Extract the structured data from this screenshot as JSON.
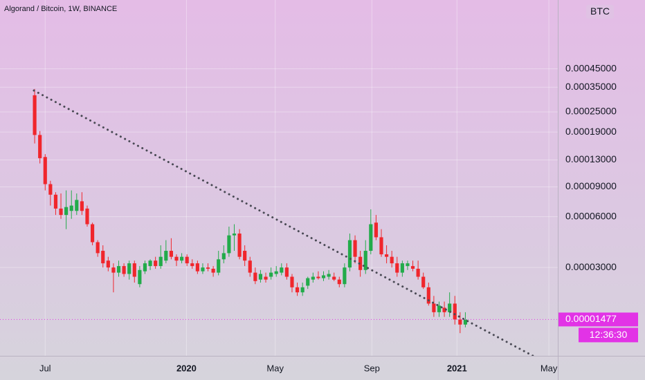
{
  "chart_data": {
    "type": "candlestick",
    "title": "Algorand / Bitcoin, 1W, BINANCE",
    "currency": "BTC",
    "log_scale": true,
    "grid": true,
    "up_color": "#22ab4a",
    "down_color": "#f0262c",
    "last_price": 1.477e-05,
    "last_price_color": "#e233e6",
    "countdown": "12:36:30",
    "xlim": [
      -6.6,
      99.6
    ],
    "xticks": [
      {
        "value": 2,
        "label": "Jul"
      },
      {
        "value": 28.9,
        "label": "2020"
      },
      {
        "value": 45.8,
        "label": "May"
      },
      {
        "value": 64.2,
        "label": "Sep"
      },
      {
        "value": 80.4,
        "label": "2021"
      },
      {
        "value": 97.9,
        "label": "May"
      }
    ],
    "ylim": [
      9e-06,
      0.00115
    ],
    "yticks": [
      {
        "value": 3e-05,
        "label": "0.00003000"
      },
      {
        "value": 6e-05,
        "label": "0.00006000"
      },
      {
        "value": 9e-05,
        "label": "0.00009000"
      },
      {
        "value": 0.00013,
        "label": "0.00013000"
      },
      {
        "value": 0.00019,
        "label": "0.00019000"
      },
      {
        "value": 0.00025,
        "label": "0.00025000"
      },
      {
        "value": 0.00035,
        "label": "0.00035000"
      },
      {
        "value": 0.00045,
        "label": "0.00045000"
      }
    ],
    "open": [
      0.0003139,
      0.00018265,
      0.00013525,
      9.346e-05,
      8.093e-05,
      6.698e-05,
      6.14e-05,
      6.489e-05,
      6.489e-05,
      7.396e-05,
      6.698e-05,
      5.412e-05,
      4.236e-05,
      3.766e-05,
      3.295e-05,
      3e-05,
      2.797e-05,
      3.059e-05,
      2.747e-05,
      3.176e-05,
      2.392e-05,
      2.848e-05,
      3.059e-05,
      3.295e-05,
      3.059e-05,
      3.295e-05,
      3.766e-05,
      3.471e-05,
      3.295e-05,
      3.471e-05,
      3.176e-05,
      3.176e-05,
      2.848e-05,
      3e-05,
      2.949e-05,
      2.797e-05,
      3.354e-05,
      3.648e-05,
      4.648e-05,
      4.765e-05,
      3.766e-05,
      3.295e-05,
      2.797e-05,
      2.544e-05,
      2.645e-05,
      2.645e-05,
      2.747e-05,
      2.797e-05,
      3e-05,
      2.645e-05,
      2.29e-05,
      2.138e-05,
      2.341e-05,
      2.544e-05,
      2.645e-05,
      2.594e-05,
      2.645e-05,
      2.645e-05,
      2.544e-05,
      2.392e-05,
      3e-05,
      4.354e-05,
      3.471e-05,
      2.899e-05,
      3.766e-05,
      5.53e-05,
      4.53e-05,
      3.589e-05,
      3.471e-05,
      3.176e-05,
      2.797e-05,
      3.059e-05,
      3.059e-05,
      2.949e-05,
      2.645e-05,
      2.29e-05,
      1.834e-05,
      1.631e-05,
      1.733e-05,
      1.631e-05,
      1.834e-05,
      1.477e-05,
      1.378e-05
    ],
    "high": [
      0.0003418,
      0.00019266,
      0.00014065,
      9.781e-05,
      8.372e-05,
      8.232e-05,
      8.581e-05,
      8.581e-05,
      8.232e-05,
      8.372e-05,
      6.977e-05,
      5.53e-05,
      4.354e-05,
      4.06e-05,
      3.471e-05,
      3.176e-05,
      3.295e-05,
      3.176e-05,
      3.295e-05,
      3.295e-05,
      3.059e-05,
      3.295e-05,
      3.354e-05,
      3.471e-05,
      4.06e-05,
      4.354e-05,
      4.471e-05,
      3.589e-05,
      3.648e-05,
      3.589e-05,
      3.354e-05,
      3.295e-05,
      3.176e-05,
      3.176e-05,
      3.059e-05,
      3.766e-05,
      4.06e-05,
      5.236e-05,
      5.412e-05,
      5.059e-05,
      4.06e-05,
      3.471e-05,
      3e-05,
      2.899e-05,
      2.797e-05,
      3e-05,
      3.059e-05,
      3.176e-05,
      3.176e-05,
      2.747e-05,
      2.442e-05,
      2.442e-05,
      2.645e-05,
      2.797e-05,
      2.848e-05,
      2.848e-05,
      2.899e-05,
      2.797e-05,
      2.645e-05,
      3.176e-05,
      4.765e-05,
      4.648e-05,
      3.766e-05,
      4.354e-05,
      6.628e-05,
      6.14e-05,
      5.059e-05,
      4.06e-05,
      3.766e-05,
      3.471e-05,
      3.295e-05,
      3.295e-05,
      3.295e-05,
      3.295e-05,
      2.797e-05,
      2.442e-05,
      2.037e-05,
      1.885e-05,
      1.885e-05,
      2.138e-05,
      2.037e-05,
      1.631e-05,
      1.631e-05
    ],
    "low": [
      0.0001627,
      0.00012391,
      8.581e-05,
      6.977e-05,
      6.14e-05,
      5.824e-05,
      5.059e-05,
      5.824e-05,
      6.14e-05,
      6.14e-05,
      5.236e-05,
      4.06e-05,
      3.471e-05,
      3e-05,
      2.848e-05,
      2.138e-05,
      2.645e-05,
      2.645e-05,
      2.544e-05,
      2.442e-05,
      2.29e-05,
      2.747e-05,
      2.899e-05,
      2.949e-05,
      2.949e-05,
      3.176e-05,
      3.354e-05,
      3.059e-05,
      3.176e-05,
      3.059e-05,
      2.949e-05,
      2.747e-05,
      2.747e-05,
      2.848e-05,
      2.645e-05,
      2.696e-05,
      3.176e-05,
      3.471e-05,
      3.766e-05,
      3.354e-05,
      3.059e-05,
      2.645e-05,
      2.392e-05,
      2.442e-05,
      2.442e-05,
      2.544e-05,
      2.645e-05,
      2.696e-05,
      2.544e-05,
      2.138e-05,
      2.037e-05,
      2.037e-05,
      2.24e-05,
      2.442e-05,
      2.544e-05,
      2.493e-05,
      2.544e-05,
      2.493e-05,
      2.29e-05,
      2.29e-05,
      2.848e-05,
      3.176e-05,
      2.645e-05,
      2.747e-05,
      3.589e-05,
      4.354e-05,
      3.471e-05,
      3.176e-05,
      3e-05,
      2.645e-05,
      2.645e-05,
      2.899e-05,
      2.848e-05,
      2.544e-05,
      2.24e-05,
      1.784e-05,
      1.53e-05,
      1.53e-05,
      1.53e-05,
      1.53e-05,
      1.378e-05,
      1.226e-05,
      1.327e-05
    ],
    "close": [
      0.00018265,
      0.00013315,
      9.346e-05,
      8.093e-05,
      6.698e-05,
      6.14e-05,
      6.838e-05,
      6.977e-05,
      7.535e-05,
      6.489e-05,
      5.412e-05,
      4.236e-05,
      3.648e-05,
      3.176e-05,
      3e-05,
      2.797e-05,
      3.059e-05,
      2.747e-05,
      3.176e-05,
      2.645e-05,
      2.899e-05,
      3.176e-05,
      3.295e-05,
      3.059e-05,
      3.471e-05,
      3.766e-05,
      3.471e-05,
      3.295e-05,
      3.471e-05,
      3.176e-05,
      3.059e-05,
      2.848e-05,
      3e-05,
      2.949e-05,
      2.797e-05,
      3.354e-05,
      3.648e-05,
      4.648e-05,
      4.765e-05,
      3.471e-05,
      3.295e-05,
      2.797e-05,
      2.493e-05,
      2.747e-05,
      2.544e-05,
      2.797e-05,
      2.848e-05,
      3e-05,
      2.645e-05,
      2.29e-05,
      2.138e-05,
      2.29e-05,
      2.594e-05,
      2.645e-05,
      2.594e-05,
      2.696e-05,
      2.747e-05,
      2.544e-05,
      2.392e-05,
      3e-05,
      4.354e-05,
      3.471e-05,
      2.899e-05,
      3.766e-05,
      5.412e-05,
      4.53e-05,
      3.589e-05,
      3.471e-05,
      3.176e-05,
      2.797e-05,
      3.176e-05,
      3.176e-05,
      2.949e-05,
      2.645e-05,
      2.29e-05,
      1.834e-05,
      1.631e-05,
      1.784e-05,
      1.631e-05,
      1.834e-05,
      1.477e-05,
      1.378e-05,
      1.477e-05
    ]
  }
}
